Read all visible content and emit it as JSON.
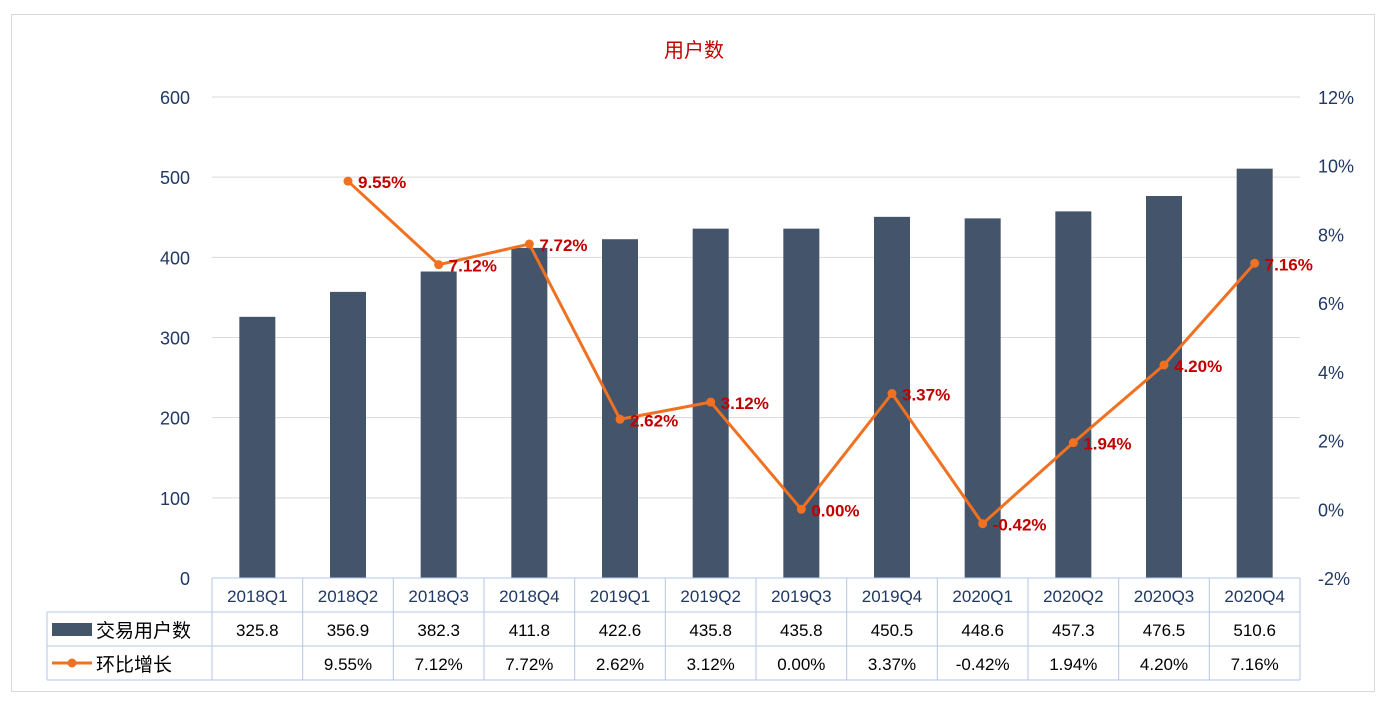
{
  "chart_data": {
    "type": "bar",
    "title": "用户数",
    "categories": [
      "2018Q1",
      "2018Q2",
      "2018Q3",
      "2018Q4",
      "2019Q1",
      "2019Q2",
      "2019Q3",
      "2019Q4",
      "2020Q1",
      "2020Q2",
      "2020Q3",
      "2020Q4"
    ],
    "left_axis": {
      "ylim": [
        0,
        600
      ],
      "ticks": [
        "0",
        "100",
        "200",
        "300",
        "400",
        "500",
        "600"
      ]
    },
    "right_axis": {
      "ylim": [
        -2,
        12
      ],
      "ticks": [
        "-2%",
        "0%",
        "2%",
        "4%",
        "6%",
        "8%",
        "10%",
        "12%"
      ]
    },
    "grid": true,
    "legend_placement": "table-below",
    "series": [
      {
        "name": "交易用户数",
        "type": "bar",
        "axis": "left",
        "color": "#44546a",
        "values": [
          325.8,
          356.9,
          382.3,
          411.8,
          422.6,
          435.8,
          435.8,
          450.5,
          448.6,
          457.3,
          476.5,
          510.6
        ],
        "table_labels": [
          "325.8",
          "356.9",
          "382.3",
          "411.8",
          "422.6",
          "435.8",
          "435.8",
          "450.5",
          "448.6",
          "457.3",
          "476.5",
          "510.6"
        ]
      },
      {
        "name": "环比增长",
        "type": "line",
        "axis": "right",
        "color": "#f07121",
        "label_color": "#c00000",
        "values": [
          null,
          9.55,
          7.12,
          7.72,
          2.62,
          3.12,
          0.0,
          3.37,
          -0.42,
          1.94,
          4.2,
          7.16
        ],
        "table_labels": [
          "",
          "9.55%",
          "7.12%",
          "7.72%",
          "2.62%",
          "3.12%",
          "0.00%",
          "3.37%",
          "-0.42%",
          "1.94%",
          "4.20%",
          "7.16%"
        ],
        "point_labels": [
          "",
          "9.55%",
          "7.12%",
          "7.72%",
          "2.62%",
          "3.12%",
          "0.00%",
          "3.37%",
          "-0.42%",
          "1.94%",
          "4.20%",
          "7.16%"
        ]
      }
    ],
    "colors": {
      "title": "#c00000",
      "axis_text": "#1f3864",
      "grid": "#d9d9d9"
    }
  }
}
